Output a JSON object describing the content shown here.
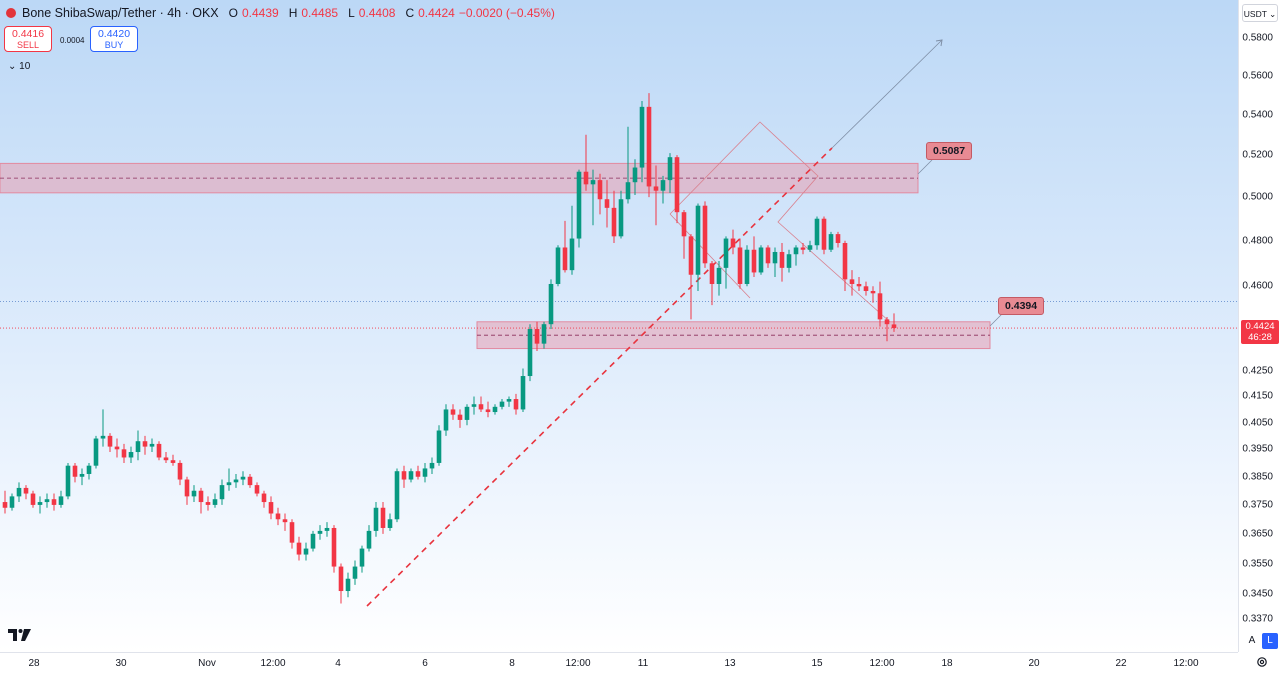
{
  "header": {
    "title": "Bone ShibaSwap/Tether · 4h · OKX",
    "open_label": "O",
    "open": "0.4439",
    "high_label": "H",
    "high": "0.4485",
    "low_label": "L",
    "low": "0.4408",
    "close_label": "C",
    "close": "0.4424",
    "change": "−0.0020 (−0.45%)"
  },
  "trade": {
    "sell_price": "0.4416",
    "sell_label": "SELL",
    "spread": "0.0004",
    "buy_price": "0.4420",
    "buy_label": "BUY"
  },
  "indicator_toggle": "⌄ 10",
  "currency": "USDT ⌄",
  "price_axis": {
    "ticks": [
      "0.5800",
      "0.5600",
      "0.5400",
      "0.5200",
      "0.5000",
      "0.4800",
      "0.4600",
      "0.4250",
      "0.4150",
      "0.4050",
      "0.3950",
      "0.3850",
      "0.3750",
      "0.3650",
      "0.3550",
      "0.3450",
      "0.3370"
    ],
    "current_price": "0.4424",
    "countdown": "46:28"
  },
  "time_axis": {
    "ticks": [
      "28",
      "30",
      "Nov",
      "12:00",
      "4",
      "6",
      "8",
      "12:00",
      "11",
      "13",
      "15",
      "12:00",
      "18",
      "20",
      "22",
      "12:00"
    ]
  },
  "levels": {
    "upper": "0.5087",
    "lower": "0.4394"
  },
  "scale_buttons": {
    "auto": "A",
    "log": "L"
  },
  "colors": {
    "up": "#089981",
    "down": "#f23645",
    "zone": "#e89fb0",
    "background": "#c6ddf7"
  },
  "chart_data": {
    "type": "candlestick",
    "symbol": "Bone ShibaSwap/Tether",
    "interval": "4h",
    "exchange": "OKX",
    "ohlc": [
      [
        0.376,
        0.38,
        0.372,
        0.374
      ],
      [
        0.374,
        0.379,
        0.373,
        0.378
      ],
      [
        0.378,
        0.383,
        0.376,
        0.381
      ],
      [
        0.381,
        0.382,
        0.377,
        0.379
      ],
      [
        0.379,
        0.38,
        0.374,
        0.375
      ],
      [
        0.375,
        0.378,
        0.372,
        0.376
      ],
      [
        0.376,
        0.379,
        0.374,
        0.377
      ],
      [
        0.377,
        0.379,
        0.373,
        0.375
      ],
      [
        0.375,
        0.38,
        0.374,
        0.378
      ],
      [
        0.378,
        0.39,
        0.377,
        0.389
      ],
      [
        0.389,
        0.39,
        0.383,
        0.385
      ],
      [
        0.385,
        0.388,
        0.382,
        0.386
      ],
      [
        0.386,
        0.39,
        0.384,
        0.389
      ],
      [
        0.389,
        0.4,
        0.388,
        0.399
      ],
      [
        0.399,
        0.41,
        0.396,
        0.4
      ],
      [
        0.4,
        0.401,
        0.394,
        0.396
      ],
      [
        0.396,
        0.399,
        0.392,
        0.395
      ],
      [
        0.395,
        0.397,
        0.39,
        0.392
      ],
      [
        0.392,
        0.396,
        0.39,
        0.394
      ],
      [
        0.394,
        0.402,
        0.391,
        0.398
      ],
      [
        0.398,
        0.4,
        0.393,
        0.396
      ],
      [
        0.396,
        0.399,
        0.394,
        0.397
      ],
      [
        0.397,
        0.398,
        0.391,
        0.392
      ],
      [
        0.392,
        0.394,
        0.39,
        0.391
      ],
      [
        0.391,
        0.393,
        0.389,
        0.39
      ],
      [
        0.39,
        0.391,
        0.382,
        0.384
      ],
      [
        0.384,
        0.385,
        0.375,
        0.378
      ],
      [
        0.378,
        0.382,
        0.376,
        0.38
      ],
      [
        0.38,
        0.381,
        0.372,
        0.376
      ],
      [
        0.376,
        0.378,
        0.373,
        0.375
      ],
      [
        0.375,
        0.379,
        0.374,
        0.377
      ],
      [
        0.377,
        0.384,
        0.375,
        0.382
      ],
      [
        0.382,
        0.388,
        0.38,
        0.383
      ],
      [
        0.383,
        0.386,
        0.381,
        0.384
      ],
      [
        0.384,
        0.387,
        0.382,
        0.385
      ],
      [
        0.385,
        0.386,
        0.381,
        0.382
      ],
      [
        0.382,
        0.383,
        0.378,
        0.379
      ],
      [
        0.379,
        0.38,
        0.374,
        0.376
      ],
      [
        0.376,
        0.378,
        0.37,
        0.372
      ],
      [
        0.372,
        0.374,
        0.368,
        0.37
      ],
      [
        0.37,
        0.372,
        0.366,
        0.369
      ],
      [
        0.369,
        0.37,
        0.36,
        0.362
      ],
      [
        0.362,
        0.364,
        0.356,
        0.358
      ],
      [
        0.358,
        0.362,
        0.356,
        0.36
      ],
      [
        0.36,
        0.366,
        0.359,
        0.365
      ],
      [
        0.365,
        0.368,
        0.363,
        0.366
      ],
      [
        0.366,
        0.369,
        0.364,
        0.367
      ],
      [
        0.367,
        0.368,
        0.352,
        0.354
      ],
      [
        0.354,
        0.355,
        0.342,
        0.346
      ],
      [
        0.346,
        0.352,
        0.344,
        0.35
      ],
      [
        0.35,
        0.356,
        0.348,
        0.354
      ],
      [
        0.354,
        0.361,
        0.352,
        0.36
      ],
      [
        0.36,
        0.368,
        0.359,
        0.366
      ],
      [
        0.366,
        0.376,
        0.364,
        0.374
      ],
      [
        0.374,
        0.376,
        0.365,
        0.367
      ],
      [
        0.367,
        0.372,
        0.366,
        0.37
      ],
      [
        0.37,
        0.388,
        0.369,
        0.387
      ],
      [
        0.387,
        0.389,
        0.381,
        0.384
      ],
      [
        0.384,
        0.388,
        0.383,
        0.387
      ],
      [
        0.387,
        0.389,
        0.384,
        0.385
      ],
      [
        0.385,
        0.39,
        0.383,
        0.388
      ],
      [
        0.388,
        0.392,
        0.386,
        0.39
      ],
      [
        0.39,
        0.404,
        0.389,
        0.402
      ],
      [
        0.402,
        0.412,
        0.4,
        0.41
      ],
      [
        0.41,
        0.412,
        0.406,
        0.408
      ],
      [
        0.408,
        0.41,
        0.403,
        0.406
      ],
      [
        0.406,
        0.412,
        0.404,
        0.411
      ],
      [
        0.411,
        0.415,
        0.408,
        0.412
      ],
      [
        0.412,
        0.415,
        0.409,
        0.41
      ],
      [
        0.41,
        0.413,
        0.407,
        0.409
      ],
      [
        0.409,
        0.412,
        0.408,
        0.411
      ],
      [
        0.411,
        0.414,
        0.41,
        0.413
      ],
      [
        0.413,
        0.415,
        0.411,
        0.414
      ],
      [
        0.414,
        0.416,
        0.408,
        0.41
      ],
      [
        0.41,
        0.426,
        0.409,
        0.423
      ],
      [
        0.423,
        0.444,
        0.421,
        0.442
      ],
      [
        0.442,
        0.445,
        0.433,
        0.436
      ],
      [
        0.436,
        0.445,
        0.434,
        0.444
      ],
      [
        0.444,
        0.463,
        0.442,
        0.461
      ],
      [
        0.461,
        0.478,
        0.46,
        0.477
      ],
      [
        0.477,
        0.489,
        0.466,
        0.467
      ],
      [
        0.467,
        0.496,
        0.465,
        0.481
      ],
      [
        0.481,
        0.513,
        0.477,
        0.512
      ],
      [
        0.512,
        0.53,
        0.503,
        0.506
      ],
      [
        0.506,
        0.513,
        0.487,
        0.508
      ],
      [
        0.508,
        0.511,
        0.492,
        0.499
      ],
      [
        0.499,
        0.508,
        0.486,
        0.495
      ],
      [
        0.495,
        0.503,
        0.479,
        0.482
      ],
      [
        0.482,
        0.503,
        0.481,
        0.499
      ],
      [
        0.499,
        0.534,
        0.497,
        0.507
      ],
      [
        0.507,
        0.518,
        0.501,
        0.514
      ],
      [
        0.514,
        0.547,
        0.507,
        0.544
      ],
      [
        0.544,
        0.551,
        0.5,
        0.505
      ],
      [
        0.505,
        0.515,
        0.487,
        0.503
      ],
      [
        0.503,
        0.51,
        0.497,
        0.508
      ],
      [
        0.508,
        0.521,
        0.502,
        0.519
      ],
      [
        0.519,
        0.52,
        0.488,
        0.493
      ],
      [
        0.493,
        0.494,
        0.472,
        0.482
      ],
      [
        0.482,
        0.483,
        0.446,
        0.465
      ],
      [
        0.465,
        0.497,
        0.458,
        0.496
      ],
      [
        0.496,
        0.498,
        0.468,
        0.47
      ],
      [
        0.47,
        0.471,
        0.452,
        0.461
      ],
      [
        0.461,
        0.471,
        0.456,
        0.468
      ],
      [
        0.468,
        0.482,
        0.459,
        0.481
      ],
      [
        0.481,
        0.485,
        0.474,
        0.477
      ],
      [
        0.477,
        0.481,
        0.459,
        0.461
      ],
      [
        0.461,
        0.478,
        0.46,
        0.476
      ],
      [
        0.476,
        0.482,
        0.464,
        0.466
      ],
      [
        0.466,
        0.478,
        0.465,
        0.477
      ],
      [
        0.477,
        0.478,
        0.468,
        0.47
      ],
      [
        0.47,
        0.477,
        0.464,
        0.475
      ],
      [
        0.475,
        0.479,
        0.462,
        0.468
      ],
      [
        0.468,
        0.476,
        0.466,
        0.474
      ],
      [
        0.474,
        0.478,
        0.469,
        0.477
      ],
      [
        0.477,
        0.479,
        0.474,
        0.476
      ],
      [
        0.476,
        0.48,
        0.475,
        0.478
      ],
      [
        0.478,
        0.491,
        0.476,
        0.49
      ],
      [
        0.49,
        0.491,
        0.474,
        0.476
      ],
      [
        0.476,
        0.484,
        0.475,
        0.483
      ],
      [
        0.483,
        0.484,
        0.477,
        0.479
      ],
      [
        0.479,
        0.48,
        0.458,
        0.463
      ],
      [
        0.463,
        0.467,
        0.456,
        0.461
      ],
      [
        0.461,
        0.464,
        0.458,
        0.46
      ],
      [
        0.46,
        0.462,
        0.456,
        0.458
      ],
      [
        0.458,
        0.46,
        0.453,
        0.457
      ],
      [
        0.457,
        0.462,
        0.443,
        0.446
      ],
      [
        0.446,
        0.447,
        0.437,
        0.444
      ],
      [
        0.4439,
        0.4485,
        0.4408,
        0.4424
      ]
    ],
    "x_labels": [
      "28",
      "30",
      "Nov",
      "12:00",
      "4",
      "6",
      "8",
      "12:00",
      "11",
      "13",
      "15",
      "12:00",
      "18",
      "20",
      "22",
      "12:00"
    ],
    "y_range": [
      0.333,
      0.59
    ],
    "y_scale": "log",
    "zones": [
      {
        "label": "0.5087",
        "low": 0.502,
        "high": 0.516
      },
      {
        "label": "0.4394",
        "low": 0.434,
        "high": 0.445
      }
    ],
    "current_price": 0.4424
  }
}
